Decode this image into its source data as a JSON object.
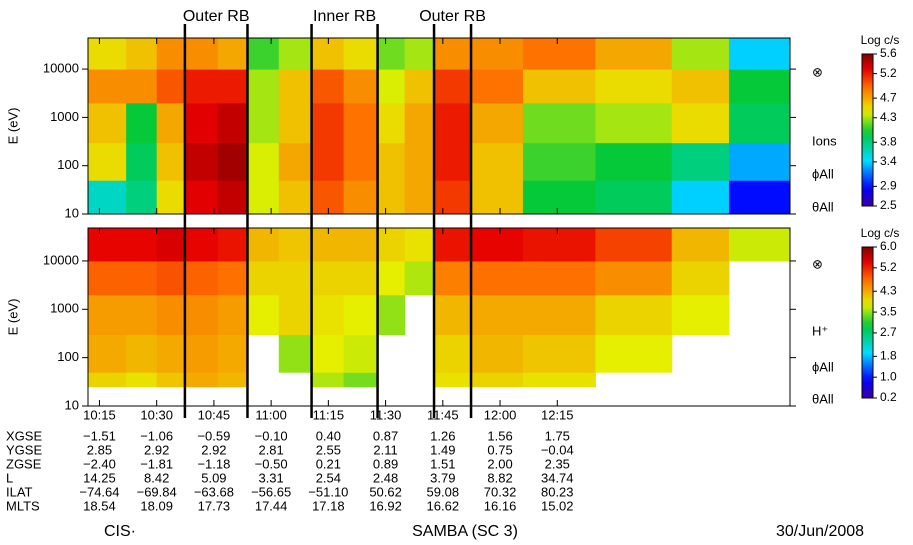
{
  "chart_data": {
    "type": "heatmap",
    "log_y": true,
    "xlim": [
      612,
      796
    ],
    "xticks": [
      {
        "value": 615,
        "label": "10:15"
      },
      {
        "value": 630,
        "label": "10:30"
      },
      {
        "value": 645,
        "label": "10:45"
      },
      {
        "value": 660,
        "label": "11:00"
      },
      {
        "value": 675,
        "label": "11:15"
      },
      {
        "value": 690,
        "label": "11:30"
      },
      {
        "value": 705,
        "label": "11:45"
      },
      {
        "value": 720,
        "label": "12:00"
      },
      {
        "value": 735,
        "label": "12:15"
      }
    ],
    "x_edges": [
      612,
      622,
      630,
      637.4,
      646,
      653.8,
      662,
      670.6,
      679,
      687.9,
      695,
      702.7,
      712.4,
      726,
      745,
      765,
      780,
      796
    ],
    "regions": [
      {
        "label": "Outer RB",
        "start": 637.4,
        "end": 653.8
      },
      {
        "label": "Inner RB",
        "start": 670.6,
        "end": 687.9
      },
      {
        "label": "Outer RB",
        "start": 702.7,
        "end": 712.4
      }
    ],
    "panels": [
      {
        "ylabel": "E (eV)",
        "ylim": [
          10,
          44000
        ],
        "yticks": [
          10,
          100,
          1000,
          10000
        ],
        "y_edges": [
          10,
          50,
          300,
          2000,
          10000,
          44000
        ],
        "colorbar_label": "Log c/s",
        "clim": [
          2.5,
          5.6
        ],
        "cticks": [
          5.6,
          5.2,
          4.7,
          4.3,
          3.8,
          3.4,
          2.9,
          2.5
        ],
        "side_labels": [
          "⊗",
          "Ions",
          "ϕAll",
          "θAll"
        ],
        "values": [
          [
            3.6,
            4.5,
            4.6,
            4.8,
            4.5
          ],
          [
            3.8,
            3.9,
            4.0,
            4.8,
            4.6
          ],
          [
            4.5,
            4.6,
            4.7,
            5.0,
            4.8
          ],
          [
            5.3,
            5.4,
            5.3,
            5.2,
            4.8
          ],
          [
            5.4,
            5.5,
            5.4,
            5.2,
            4.7
          ],
          [
            4.4,
            4.4,
            4.3,
            4.3,
            4.1
          ],
          [
            4.6,
            4.7,
            4.6,
            4.6,
            4.3
          ],
          [
            5.0,
            5.1,
            5.1,
            5.0,
            4.6
          ],
          [
            4.8,
            4.9,
            4.9,
            4.8,
            4.5
          ],
          [
            4.6,
            4.6,
            4.5,
            4.4,
            4.2
          ],
          [
            4.7,
            4.7,
            4.7,
            4.6,
            4.3
          ],
          [
            5.1,
            5.2,
            5.2,
            5.1,
            4.8
          ],
          [
            4.6,
            4.6,
            4.7,
            4.9,
            4.8
          ],
          [
            4.0,
            4.1,
            4.2,
            4.6,
            4.9
          ],
          [
            3.9,
            4.0,
            4.3,
            4.5,
            4.7
          ],
          [
            3.4,
            3.8,
            4.5,
            4.6,
            4.3
          ],
          [
            2.9,
            3.3,
            3.9,
            4.0,
            3.4
          ]
        ]
      },
      {
        "ylabel": "E (eV)",
        "ylim": [
          10,
          48000
        ],
        "yticks": [
          10,
          100,
          1000,
          10000
        ],
        "y_edges": [
          25,
          50,
          300,
          2000,
          10000,
          48000
        ],
        "colorbar_label": "Log c/s",
        "clim": [
          0.2,
          6
        ],
        "cticks": [
          {
            "value": 6,
            "label": "6.0"
          },
          5.2,
          4.3,
          3.5,
          2.7,
          1.8,
          {
            "value": 1,
            "label": "1.0"
          },
          0.2
        ],
        "side_labels": [
          "⊗",
          "H⁺",
          "ϕAll",
          "θAll"
        ],
        "values": [
          [
            4.0,
            4.3,
            4.4,
            4.8,
            5.4
          ],
          [
            3.9,
            4.2,
            4.4,
            4.8,
            5.4
          ],
          [
            4.1,
            4.3,
            4.5,
            4.9,
            5.5
          ],
          [
            4.3,
            4.4,
            4.5,
            4.8,
            5.4
          ],
          [
            4.2,
            4.3,
            4.4,
            4.7,
            5.3
          ],
          [
            null,
            null,
            3.8,
            4.0,
            4.2
          ],
          [
            null,
            3.5,
            4.0,
            4.0,
            4.1
          ],
          [
            3.6,
            3.8,
            3.9,
            4.0,
            4.2
          ],
          [
            3.4,
            3.7,
            3.8,
            4.0,
            4.2
          ],
          [
            null,
            null,
            3.5,
            3.8,
            4.0
          ],
          [
            null,
            null,
            null,
            3.6,
            3.9
          ],
          [
            3.9,
            4.0,
            4.2,
            4.6,
            5.3
          ],
          [
            4.0,
            4.2,
            4.3,
            4.7,
            5.4
          ],
          [
            3.9,
            4.1,
            4.3,
            4.7,
            5.3
          ],
          [
            null,
            3.8,
            4.0,
            4.5,
            5.0
          ],
          [
            null,
            null,
            3.8,
            4.0,
            4.2
          ],
          [
            null,
            null,
            null,
            null,
            3.7
          ]
        ]
      }
    ]
  },
  "orbit_table": {
    "row_labels": [
      "XGSE",
      "YGSE",
      "ZGSE",
      "L",
      "ILAT",
      "MLTS"
    ],
    "rows": [
      [
        "−1.51",
        "−1.06",
        "−0.59",
        "−0.10",
        "0.40",
        "0.87",
        "1.26",
        "1.56",
        "1.75"
      ],
      [
        "2.85",
        "2.92",
        "2.92",
        "2.81",
        "2.55",
        "2.11",
        "1.49",
        "0.75",
        "−0.04"
      ],
      [
        "−2.40",
        "−1.81",
        "−1.18",
        "−0.50",
        "0.21",
        "0.89",
        "1.51",
        "2.00",
        "2.35"
      ],
      [
        "14.25",
        "8.42",
        "5.09",
        "3.31",
        "2.54",
        "2.48",
        "3.79",
        "8.82",
        "34.74"
      ],
      [
        "−74.64",
        "−69.84",
        "−63.68",
        "−56.65",
        "−51.10",
        "50.62",
        "59.08",
        "70.32",
        "80.23"
      ],
      [
        "18.54",
        "18.09",
        "17.73",
        "17.44",
        "17.18",
        "16.92",
        "16.62",
        "16.16",
        "15.02"
      ]
    ]
  },
  "footer": {
    "left": "CIS·",
    "center": "SAMBA (SC 3)",
    "right": "30/Jun/2008"
  }
}
